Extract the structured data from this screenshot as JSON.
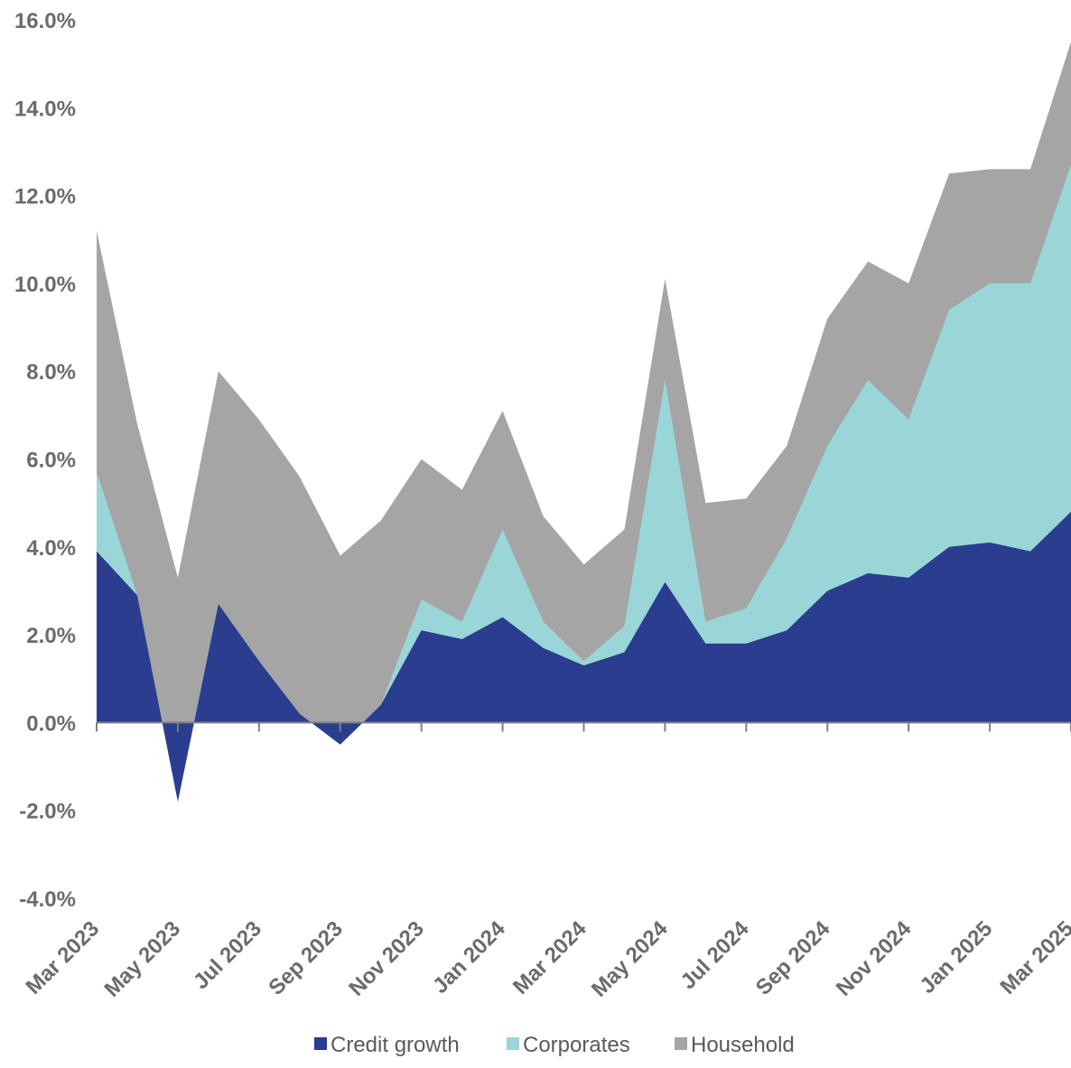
{
  "chart_data": {
    "type": "area",
    "title": "",
    "xlabel": "",
    "ylabel": "",
    "ylim": [
      -4,
      16
    ],
    "y_ticks": [
      "16.0%",
      "14.0%",
      "12.0%",
      "10.0%",
      "8.0%",
      "6.0%",
      "4.0%",
      "2.0%",
      "0.0%",
      "-2.0%",
      "-4.0%"
    ],
    "y_tick_values": [
      16,
      14,
      12,
      10,
      8,
      6,
      4,
      2,
      0,
      -2,
      -4
    ],
    "x_tick_labels": [
      "Mar 2023",
      "May 2023",
      "Jul 2023",
      "Sep 2023",
      "Nov 2023",
      "Jan 2024",
      "Mar 2024",
      "May 2024",
      "Jul 2024",
      "Sep 2024",
      "Nov 2024",
      "Jan 2025",
      "Mar 2025"
    ],
    "categories": [
      "Mar 2023",
      "Apr 2023",
      "May 2023",
      "Jun 2023",
      "Jul 2023",
      "Aug 2023",
      "Sep 2023",
      "Oct 2023",
      "Nov 2023",
      "Dec 2023",
      "Jan 2024",
      "Feb 2024",
      "Mar 2024",
      "Apr 2024",
      "May 2024",
      "Jun 2024",
      "Jul 2024",
      "Aug 2024",
      "Sep 2024",
      "Oct 2024",
      "Nov 2024",
      "Dec 2024",
      "Jan 2025",
      "Feb 2025",
      "Mar 2025"
    ],
    "series": [
      {
        "name": "Credit growth",
        "color": "#2a3d8f",
        "values": [
          3.9,
          2.9,
          -1.8,
          2.7,
          1.4,
          0.2,
          -0.5,
          0.4,
          2.1,
          1.9,
          2.4,
          1.7,
          1.3,
          1.6,
          3.2,
          1.8,
          1.8,
          2.1,
          3.0,
          3.4,
          3.3,
          4.0,
          4.1,
          3.9,
          4.8
        ]
      },
      {
        "name": "Corporates",
        "color": "#9ad6d8",
        "values": [
          5.7,
          2.9,
          -1.8,
          2.7,
          1.4,
          0.2,
          -0.5,
          0.4,
          2.8,
          2.3,
          4.4,
          2.3,
          1.4,
          2.2,
          7.8,
          2.3,
          2.6,
          4.2,
          6.3,
          7.8,
          6.9,
          9.4,
          10.0,
          10.0,
          12.7
        ]
      },
      {
        "name": "Household",
        "color": "#a5a5a5",
        "values": [
          11.2,
          6.8,
          3.3,
          8.0,
          6.9,
          5.6,
          3.8,
          4.6,
          6.0,
          5.3,
          7.1,
          4.7,
          3.6,
          4.4,
          10.1,
          5.0,
          5.1,
          6.3,
          9.2,
          10.5,
          10.0,
          12.5,
          12.6,
          12.6,
          15.5
        ]
      }
    ],
    "legend": [
      "Credit growth",
      "Corporates",
      "Household"
    ],
    "legend_position": "bottom-center",
    "grid": false
  }
}
